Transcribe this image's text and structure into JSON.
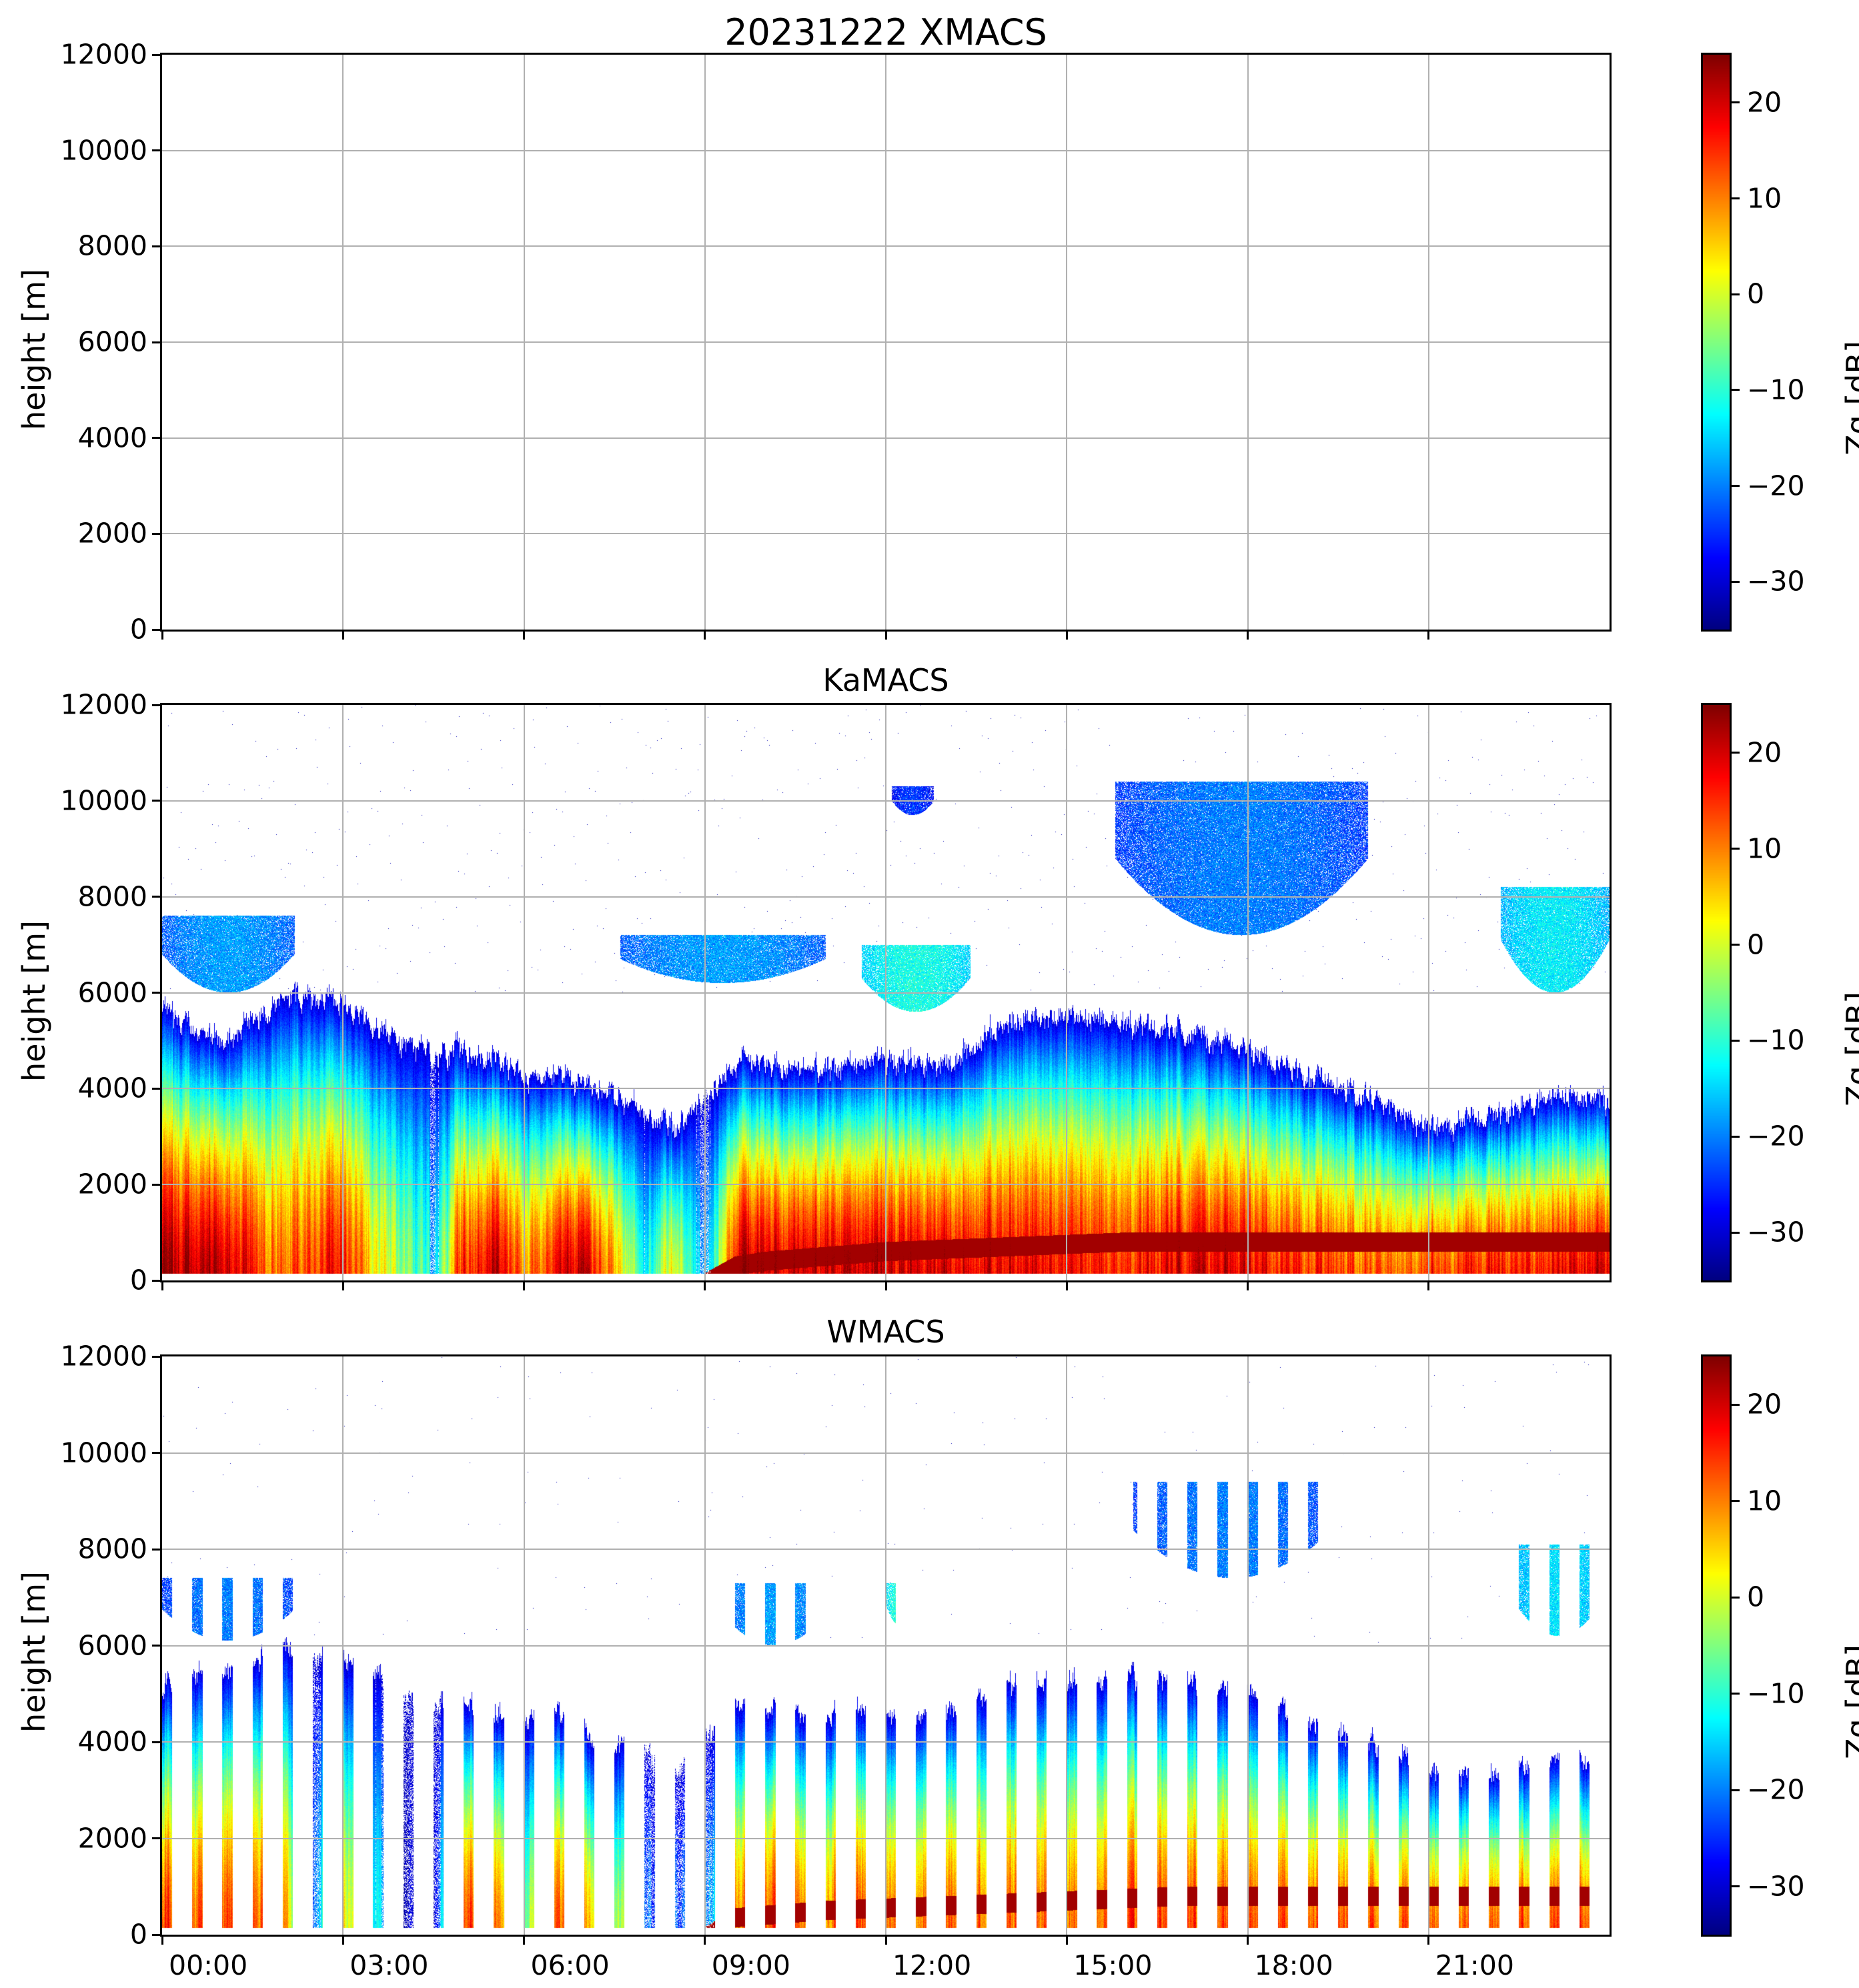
{
  "figure": {
    "suptitle_date": "20231222"
  },
  "chart_data": [
    {
      "type": "heatmap",
      "title": "20231222 XMACS",
      "instrument": "XMACS",
      "xlabel": "",
      "ylabel": "height [m]",
      "xlim_hours": [
        0,
        24
      ],
      "ylim": [
        0,
        12000
      ],
      "xticks": [
        "00:00",
        "03:00",
        "06:00",
        "09:00",
        "12:00",
        "15:00",
        "18:00",
        "21:00"
      ],
      "yticks": [
        "0",
        "2000",
        "4000",
        "6000",
        "8000",
        "10000",
        "12000"
      ],
      "grid": true,
      "colorbar": {
        "label": "Zg [dB]",
        "vmin": -35,
        "vmax": 25,
        "ticks": [
          "−30",
          "−20",
          "−10",
          "0",
          "10",
          "20"
        ],
        "colormap": "jet"
      },
      "has_data": false,
      "layers": []
    },
    {
      "type": "heatmap",
      "title": "KaMACS",
      "instrument": "KaMACS",
      "xlabel": "",
      "ylabel": "height [m]",
      "xlim_hours": [
        0,
        24
      ],
      "ylim": [
        0,
        12000
      ],
      "xticks": [
        "00:00",
        "03:00",
        "06:00",
        "09:00",
        "12:00",
        "15:00",
        "18:00",
        "21:00"
      ],
      "yticks": [
        "0",
        "2000",
        "4000",
        "6000",
        "8000",
        "10000",
        "12000"
      ],
      "grid": true,
      "colorbar": {
        "label": "Zg [dB]",
        "vmin": -35,
        "vmax": 25,
        "ticks": [
          "−30",
          "−20",
          "−10",
          "0",
          "10",
          "20"
        ],
        "colormap": "jet"
      },
      "has_data": true,
      "lowest_gate_m": 150,
      "sampling": "continuous",
      "layers": [
        {
          "name": "main precipitating layer",
          "time_h": [
            0.0,
            0.5,
            1.0,
            1.5,
            2.0,
            2.5,
            3.0,
            3.5,
            4.0,
            4.5,
            5.0,
            5.5,
            6.0,
            6.5,
            7.0,
            7.5,
            8.0,
            8.5,
            9.0,
            9.5,
            10.0,
            11.0,
            12.0,
            13.0,
            14.0,
            15.0,
            16.0,
            17.0,
            18.0,
            19.0,
            20.0,
            20.5,
            21.0,
            22.0,
            23.0,
            24.0
          ],
          "top_m": [
            5600,
            5300,
            5000,
            5400,
            5900,
            5900,
            5800,
            5400,
            4900,
            4700,
            4800,
            4600,
            4200,
            4300,
            4100,
            3800,
            3600,
            3200,
            3800,
            4600,
            4500,
            4400,
            4600,
            4500,
            5400,
            5500,
            5400,
            5200,
            4800,
            4300,
            3800,
            3500,
            3200,
            3400,
            3900,
            3700
          ],
          "surface_dbz": [
            20,
            22,
            22,
            16,
            10,
            14,
            18,
            6,
            -5,
            -15,
            16,
            20,
            8,
            16,
            22,
            6,
            -10,
            4,
            -20,
            20,
            20,
            20,
            20,
            20,
            19,
            17,
            16,
            20,
            18,
            16,
            12,
            10,
            14,
            16,
            18,
            18
          ],
          "bright_band_m": [
            0,
            0,
            0,
            0,
            0,
            0,
            0,
            0,
            0,
            0,
            0,
            0,
            0,
            0,
            0,
            0,
            0,
            0,
            0,
            350,
            450,
            550,
            650,
            700,
            750,
            800,
            850,
            850,
            850,
            850,
            850,
            850,
            850,
            850,
            850,
            850
          ]
        },
        {
          "name": "mid-level cloud 00-02h",
          "t_start_h": 0.0,
          "t_end_h": 2.2,
          "base_m": 6000,
          "top_m": 7600,
          "dbz": -22
        },
        {
          "name": "mid-level patches 08-11h",
          "t_start_h": 7.6,
          "t_end_h": 11.0,
          "base_m": 6200,
          "top_m": 7200,
          "dbz": -22
        },
        {
          "name": "cloud 12h",
          "t_start_h": 11.6,
          "t_end_h": 13.4,
          "base_m": 5600,
          "top_m": 7000,
          "dbz": -15
        },
        {
          "name": "cirrus 12h",
          "t_start_h": 12.1,
          "t_end_h": 12.8,
          "base_m": 9700,
          "top_m": 10300,
          "dbz": -28
        },
        {
          "name": "cirrus 16-20h",
          "t_start_h": 15.8,
          "t_end_h": 20.0,
          "base_m": 7200,
          "top_m": 10400,
          "dbz": -24
        },
        {
          "name": "mid-level cloud 22-24h",
          "t_start_h": 22.2,
          "t_end_h": 24.0,
          "base_m": 6000,
          "top_m": 8200,
          "dbz": -17
        }
      ]
    },
    {
      "type": "heatmap",
      "title": "WMACS",
      "instrument": "WMACS",
      "xlabel": "",
      "ylabel": "height [m]",
      "xlim_hours": [
        0,
        24
      ],
      "ylim": [
        0,
        12000
      ],
      "xticks": [
        "00:00",
        "03:00",
        "06:00",
        "09:00",
        "12:00",
        "15:00",
        "18:00",
        "21:00"
      ],
      "yticks": [
        "0",
        "2000",
        "4000",
        "6000",
        "8000",
        "10000",
        "12000"
      ],
      "grid": true,
      "colorbar": {
        "label": "Zg [dB]",
        "vmin": -35,
        "vmax": 25,
        "ticks": [
          "−30",
          "−20",
          "−10",
          "0",
          "10",
          "20"
        ],
        "colormap": "jet"
      },
      "has_data": true,
      "lowest_gate_m": 150,
      "sampling": "periodic profiles every 0.5 h, duration ~0.17 h",
      "profile_interval_h": 0.5,
      "profile_duration_h": 0.17,
      "layers": [
        {
          "name": "main precipitating layer",
          "time_h": [
            0.0,
            0.5,
            1.0,
            1.5,
            2.0,
            2.5,
            3.0,
            3.5,
            4.0,
            4.5,
            5.0,
            5.5,
            6.0,
            6.5,
            7.0,
            7.5,
            8.0,
            8.5,
            9.0,
            9.5,
            10.0,
            11.0,
            12.0,
            13.0,
            14.0,
            15.0,
            16.0,
            17.0,
            18.0,
            19.0,
            20.0,
            20.5,
            21.0,
            22.0,
            23.0,
            24.0
          ],
          "top_m": [
            5200,
            5400,
            5400,
            5600,
            5900,
            5800,
            5800,
            5500,
            5100,
            4800,
            4900,
            4600,
            4500,
            4500,
            4300,
            4000,
            3700,
            3400,
            4000,
            4800,
            4600,
            4600,
            4600,
            4600,
            5200,
            5300,
            5300,
            5200,
            5000,
            4400,
            4000,
            3800,
            3400,
            3300,
            3600,
            3500
          ],
          "surface_dbz": [
            16,
            12,
            14,
            12,
            8,
            -20,
            6,
            -10,
            -28,
            -28,
            14,
            14,
            -5,
            8,
            10,
            2,
            -25,
            -20,
            -25,
            10,
            12,
            12,
            12,
            12,
            12,
            12,
            12,
            12,
            12,
            12,
            12,
            12,
            12,
            12,
            12,
            12
          ],
          "bright_band_m": [
            0,
            0,
            0,
            0,
            0,
            0,
            0,
            0,
            0,
            0,
            0,
            0,
            0,
            0,
            0,
            0,
            0,
            0,
            0,
            400,
            450,
            550,
            600,
            650,
            700,
            750,
            800,
            850,
            850,
            850,
            850,
            850,
            850,
            850,
            850,
            850
          ]
        },
        {
          "name": "mid-level fragments 00-02h",
          "t_start_h": 0.0,
          "t_end_h": 2.2,
          "base_m": 6100,
          "top_m": 7400,
          "dbz": -24
        },
        {
          "name": "mid-level fragments 09-11h",
          "t_start_h": 9.3,
          "t_end_h": 11.0,
          "base_m": 6000,
          "top_m": 7300,
          "dbz": -22
        },
        {
          "name": "cloud 12h",
          "t_start_h": 12.0,
          "t_end_h": 12.5,
          "base_m": 6400,
          "top_m": 7300,
          "dbz": -14
        },
        {
          "name": "cirrus 16-20h",
          "t_start_h": 16.1,
          "t_end_h": 19.4,
          "base_m": 7400,
          "top_m": 9400,
          "dbz": -24
        },
        {
          "name": "mid-level cloud 22-24h",
          "t_start_h": 22.3,
          "t_end_h": 24.0,
          "base_m": 6200,
          "top_m": 8100,
          "dbz": -18
        }
      ]
    }
  ]
}
